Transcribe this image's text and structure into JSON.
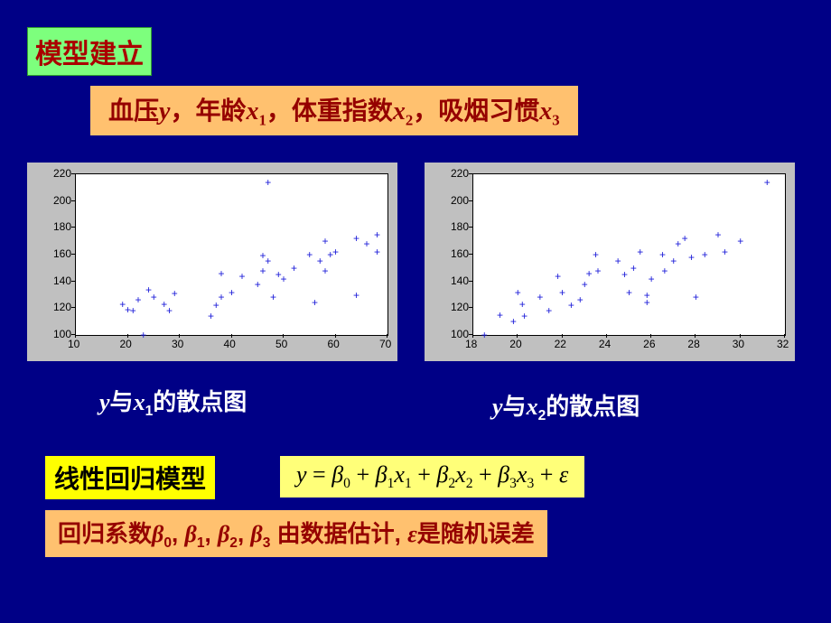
{
  "title": "模型建立",
  "subtitle_parts": [
    "血压",
    "y",
    "，年龄",
    "x",
    "1",
    "，体重指数",
    "x",
    "2",
    "，吸烟习惯",
    "x",
    "3"
  ],
  "chart1": {
    "type": "scatter",
    "caption_prefix": "y",
    "caption_middle": "与",
    "caption_var": "x",
    "caption_sub": "1",
    "caption_suffix": "的散点图",
    "xlim": [
      10,
      70
    ],
    "ylim": [
      100,
      220
    ],
    "xticks": [
      10,
      20,
      30,
      40,
      50,
      60,
      70
    ],
    "yticks": [
      100,
      120,
      140,
      160,
      180,
      200,
      220
    ],
    "tick_fontsize": 12,
    "point_color": "#1818d8",
    "background": "#c0c0c0",
    "plot_bg": "#ffffff",
    "marker": "+",
    "points": [
      [
        23,
        100
      ],
      [
        21,
        118
      ],
      [
        22,
        126
      ],
      [
        19,
        123
      ],
      [
        20,
        119
      ],
      [
        24,
        134
      ],
      [
        25,
        128
      ],
      [
        27,
        123
      ],
      [
        28,
        118
      ],
      [
        29,
        131
      ],
      [
        36,
        114
      ],
      [
        37,
        122
      ],
      [
        38,
        128
      ],
      [
        38,
        146
      ],
      [
        40,
        132
      ],
      [
        42,
        144
      ],
      [
        45,
        138
      ],
      [
        46,
        148
      ],
      [
        46,
        159
      ],
      [
        47,
        155
      ],
      [
        48,
        128
      ],
      [
        49,
        145
      ],
      [
        50,
        142
      ],
      [
        52,
        150
      ],
      [
        55,
        160
      ],
      [
        56,
        124
      ],
      [
        57,
        155
      ],
      [
        58,
        148
      ],
      [
        58,
        170
      ],
      [
        59,
        160
      ],
      [
        60,
        162
      ],
      [
        47,
        214
      ],
      [
        64,
        172
      ],
      [
        64,
        130
      ],
      [
        66,
        168
      ],
      [
        68,
        175
      ],
      [
        68,
        162
      ]
    ]
  },
  "chart2": {
    "type": "scatter",
    "caption_prefix": "y",
    "caption_middle": "与",
    "caption_var": "x",
    "caption_sub": "2",
    "caption_suffix": "的散点图",
    "xlim": [
      18,
      32
    ],
    "ylim": [
      100,
      220
    ],
    "xticks": [
      18,
      20,
      22,
      24,
      26,
      28,
      30,
      32
    ],
    "yticks": [
      100,
      120,
      140,
      160,
      180,
      200,
      220
    ],
    "tick_fontsize": 12,
    "point_color": "#1818d8",
    "background": "#c0c0c0",
    "plot_bg": "#ffffff",
    "marker": "+",
    "points": [
      [
        18.5,
        100
      ],
      [
        19.2,
        115
      ],
      [
        19.8,
        110
      ],
      [
        20.2,
        123
      ],
      [
        20.0,
        132
      ],
      [
        20.3,
        114
      ],
      [
        21.0,
        128
      ],
      [
        21.4,
        118
      ],
      [
        22.0,
        132
      ],
      [
        22.4,
        122
      ],
      [
        22.8,
        126
      ],
      [
        23.0,
        138
      ],
      [
        23.2,
        146
      ],
      [
        23.6,
        148
      ],
      [
        21.8,
        144
      ],
      [
        25.0,
        132
      ],
      [
        24.5,
        155
      ],
      [
        24.8,
        145
      ],
      [
        25.2,
        150
      ],
      [
        25.5,
        162
      ],
      [
        25.8,
        124
      ],
      [
        26.0,
        142
      ],
      [
        26.5,
        160
      ],
      [
        26.6,
        148
      ],
      [
        27.0,
        155
      ],
      [
        27.2,
        168
      ],
      [
        27.8,
        158
      ],
      [
        27.5,
        172
      ],
      [
        28.0,
        128
      ],
      [
        28.4,
        160
      ],
      [
        29.0,
        175
      ],
      [
        29.3,
        162
      ],
      [
        30.0,
        170
      ],
      [
        31.2,
        214
      ],
      [
        25.8,
        130
      ],
      [
        23.5,
        160
      ]
    ]
  },
  "lr_label": "线性回归模型",
  "formula": {
    "lhs": "y",
    "eq": " = ",
    "b": "β",
    "x": "x",
    "eps": "ε",
    "plus": " + "
  },
  "footer_parts": [
    "回归系数",
    "β",
    "0",
    ", ",
    "β",
    "1",
    ", ",
    "β",
    "2",
    ", ",
    "β",
    "3",
    " 由数据估计, ",
    "ε",
    "是随机误差"
  ],
  "colors": {
    "slide_bg": "#000086",
    "green_box": "#7dff7d",
    "orange_box": "#ffc16f",
    "yellow_box": "#ffff00",
    "formula_bg": "#ffff79",
    "red_text": "#950000",
    "title_text": "#aa0000"
  }
}
